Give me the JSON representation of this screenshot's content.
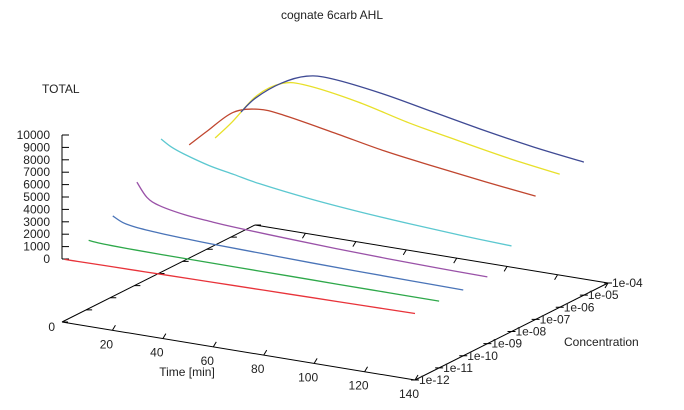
{
  "chart_data": {
    "type": "line",
    "title": "cognate 6carb AHL",
    "xlabel": "Time [min]",
    "ylabel": "Concentration",
    "zlabel": "TOTAL",
    "xlim": [
      0,
      140
    ],
    "zlim": [
      0,
      10000
    ],
    "x_ticks": [
      "20",
      "40",
      "60",
      "80",
      "100",
      "120",
      "140"
    ],
    "x_tick_values": [
      20,
      40,
      60,
      80,
      100,
      120,
      140
    ],
    "y_ticks": [
      "1e-12",
      "1e-11",
      "1e-10",
      "1e-09",
      "1e-08",
      "1e-07",
      "1e-06",
      "1e-05",
      "1e-04"
    ],
    "z_ticks": [
      "0",
      "1000",
      "2000",
      "3000",
      "4000",
      "5000",
      "6000",
      "7000",
      "8000",
      "9000",
      "10000"
    ],
    "z_tick_values": [
      0,
      1000,
      2000,
      3000,
      4000,
      5000,
      6000,
      7000,
      8000,
      9000,
      10000
    ],
    "base_label": "0",
    "x": [
      1,
      5,
      10,
      20,
      30,
      40,
      60,
      80,
      100,
      120,
      140
    ],
    "series": [
      {
        "name": "1e-12",
        "color": "#e8333a",
        "values": [
          0,
          10,
          20,
          40,
          60,
          80,
          120,
          160,
          200,
          240,
          280
        ]
      },
      {
        "name": "1e-11",
        "color": "#2ea84a",
        "values": [
          560,
          480,
          440,
          400,
          380,
          370,
          350,
          340,
          320,
          310,
          300
        ]
      },
      {
        "name": "1e-10",
        "color": "#4a74b8",
        "values": [
          1550,
          1150,
          950,
          780,
          680,
          600,
          500,
          400,
          330,
          270,
          220
        ]
      },
      {
        "name": "1e-09",
        "color": "#9a52a8",
        "values": [
          3300,
          2200,
          1700,
          1300,
          1100,
          950,
          750,
          580,
          450,
          360,
          300
        ]
      },
      {
        "name": "1e-08",
        "color": "#5cc8d0",
        "values": [
          5800,
          5300,
          4900,
          4300,
          3900,
          3500,
          2950,
          2550,
          2250,
          2000,
          1820
        ]
      },
      {
        "name": "1e-07",
        "color": "#c0462f",
        "x": [
          2.6,
          10,
          20,
          30,
          40,
          60,
          80,
          100,
          120,
          140
        ],
        "values": [
          4400,
          5800,
          7600,
          8190,
          8050,
          7300,
          6500,
          5900,
          5350,
          4860
        ]
      },
      {
        "name": "1e-06",
        "color": "#e8e02a",
        "x": [
          3.3,
          10,
          20,
          30,
          40,
          60,
          80,
          100,
          120,
          140
        ],
        "values": [
          4000,
          5500,
          8000,
          9300,
          9450,
          8800,
          7800,
          7000,
          6250,
          5650
        ]
      },
      {
        "name": "1e-05",
        "color": "#3f4a94",
        "x": [
          4,
          10,
          20,
          30,
          40,
          60,
          80,
          100,
          120,
          140
        ],
        "values": [
          5140,
          6500,
          8000,
          8900,
          9030,
          8500,
          7700,
          6900,
          6200,
          5650
        ]
      }
    ]
  }
}
